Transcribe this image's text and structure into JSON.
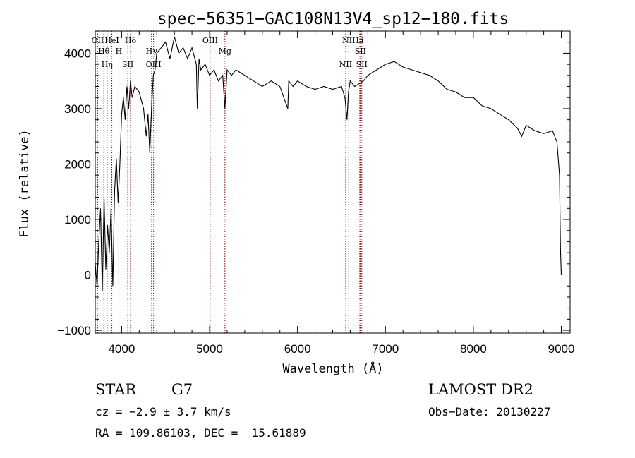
{
  "chart_data": {
    "type": "line",
    "title": "spec−56351−GAC108N13V4_sp12−180.fits",
    "xlabel": "Wavelength (Å)",
    "ylabel": "Flux (relative)",
    "xlim": [
      3700,
      9100
    ],
    "ylim": [
      -1050,
      4400
    ],
    "xticks": [
      4000,
      5000,
      6000,
      7000,
      8000,
      9000
    ],
    "xtick_labels": [
      "4000",
      "5000",
      "6000",
      "7000",
      "8000",
      "9000"
    ],
    "yticks": [
      -1000,
      0,
      1000,
      2000,
      3000,
      4000
    ],
    "ytick_labels": [
      "−1000",
      "0",
      "1000",
      "2000",
      "3000",
      "4000"
    ],
    "grid": false,
    "series": [
      {
        "x": [
          3700,
          3720,
          3740,
          3760,
          3780,
          3800,
          3820,
          3840,
          3860,
          3880,
          3900,
          3920,
          3940,
          3960,
          3980,
          4000,
          4020,
          4040,
          4060,
          4080,
          4100,
          4120,
          4150,
          4200,
          4250,
          4280,
          4300,
          4320,
          4340,
          4360,
          4380,
          4400,
          4450,
          4500,
          4550,
          4600,
          4650,
          4700,
          4750,
          4800,
          4850,
          4861,
          4880,
          4900,
          4950,
          5000,
          5050,
          5100,
          5150,
          5175,
          5200,
          5250,
          5300,
          5400,
          5500,
          5600,
          5700,
          5800,
          5890,
          5900,
          5950,
          6000,
          6100,
          6200,
          6300,
          6400,
          6500,
          6540,
          6563,
          6580,
          6600,
          6650,
          6700,
          6750,
          6800,
          6900,
          7000,
          7100,
          7200,
          7300,
          7400,
          7500,
          7600,
          7700,
          7800,
          7900,
          8000,
          8100,
          8200,
          8300,
          8400,
          8500,
          8550,
          8600,
          8700,
          8800,
          8900,
          8950,
          8980,
          8990,
          9000
        ],
        "y": [
          200,
          -200,
          600,
          1200,
          -300,
          1400,
          100,
          900,
          400,
          1200,
          -200,
          1500,
          2100,
          1300,
          2000,
          2900,
          3200,
          2800,
          3400,
          3000,
          3500,
          3200,
          3400,
          3300,
          3000,
          2500,
          2900,
          2200,
          3000,
          3600,
          3700,
          4000,
          4100,
          4200,
          3900,
          4300,
          4000,
          4100,
          3900,
          4100,
          3800,
          3000,
          3900,
          3700,
          3800,
          3600,
          3700,
          3500,
          3600,
          3000,
          3700,
          3600,
          3700,
          3600,
          3500,
          3400,
          3500,
          3400,
          3000,
          3500,
          3400,
          3500,
          3400,
          3350,
          3400,
          3350,
          3400,
          3200,
          2800,
          3300,
          3500,
          3400,
          3450,
          3500,
          3600,
          3700,
          3800,
          3850,
          3750,
          3700,
          3650,
          3600,
          3500,
          3350,
          3300,
          3200,
          3200,
          3050,
          3000,
          2900,
          2800,
          2650,
          2500,
          2700,
          2600,
          2550,
          2600,
          2400,
          1800,
          500,
          0
        ]
      }
    ],
    "line_markers": [
      {
        "label": "OII",
        "x": 3727
      },
      {
        "label": "Hθ",
        "x": 3798
      },
      {
        "label": "Hη",
        "x": 3835
      },
      {
        "label": "HeI",
        "x": 3889
      },
      {
        "label": "H",
        "x": 3968
      },
      {
        "label": "SII",
        "x": 4070
      },
      {
        "label": "Hδ",
        "x": 4101
      },
      {
        "label": "Hγ",
        "x": 4340
      },
      {
        "label": "OIII",
        "x": 4363
      },
      {
        "label": "OIII",
        "x": 5007
      },
      {
        "label": "Mg",
        "x": 5175
      },
      {
        "label": "NII",
        "x": 6548
      },
      {
        "label": "NII",
        "x": 6583
      },
      {
        "label": "SII",
        "x": 6716
      },
      {
        "label": "SII",
        "x": 6731
      },
      {
        "label": "Li",
        "x": 6708
      }
    ],
    "marker_color": "#8b0000",
    "line_color": "#000000"
  },
  "info": {
    "object_class": "STAR",
    "subclass": "G7",
    "survey": "LAMOST DR2",
    "cz": "cz = −2.9 ± 3.7 km/s",
    "obs_date": "Obs−Date: 20130227",
    "coords": "RA = 109.86103, DEC =  15.61889"
  }
}
